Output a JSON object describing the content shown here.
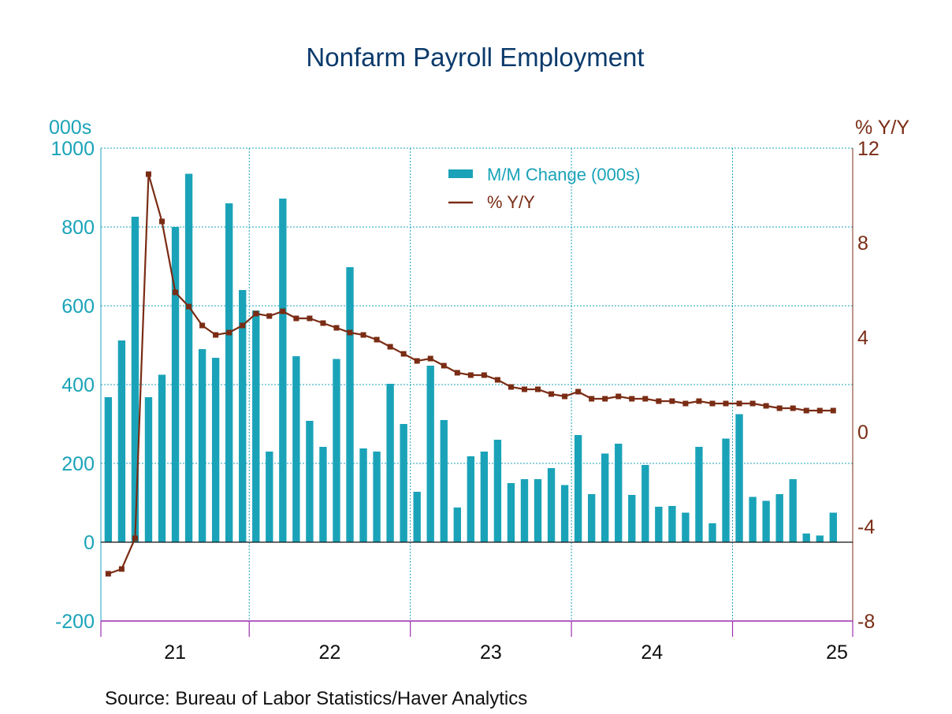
{
  "chart_data": {
    "type": "bar",
    "title": "Nonfarm Payroll Employment",
    "source": "Source:  Bureau of Labor Statistics/Haver Analytics",
    "left_axis": {
      "unit": "000s",
      "range": [
        -200,
        1000
      ],
      "ticks": [
        -200,
        0,
        200,
        400,
        600,
        800,
        1000
      ]
    },
    "right_axis": {
      "unit": "% Y/Y",
      "range": [
        -8,
        12
      ],
      "ticks": [
        -8,
        -4,
        0,
        4,
        8,
        12
      ]
    },
    "x_tick_labels": [
      "21",
      "22",
      "23",
      "24",
      "25"
    ],
    "colors": {
      "bars": "#1aa3b8",
      "line": "#7a2c14",
      "title": "#0b3a6b",
      "grid": "#1aa3b8",
      "axis": "#9b2fae"
    },
    "grid": true,
    "legend_position": "top-center",
    "series": [
      {
        "name": "M/M Change (000s)",
        "type": "bar",
        "axis": "left",
        "values": [
          368,
          512,
          826,
          368,
          425,
          800,
          935,
          490,
          468,
          860,
          640,
          588,
          230,
          872,
          472,
          308,
          242,
          465,
          698,
          238,
          230,
          402,
          300,
          128,
          448,
          310,
          88,
          218,
          230,
          260,
          150,
          160,
          160,
          188,
          145,
          272,
          122,
          225,
          250,
          120,
          196,
          90,
          92,
          75,
          242,
          48,
          263,
          325,
          115,
          105,
          122,
          160,
          22,
          17,
          75
        ]
      },
      {
        "name": "% Y/Y",
        "type": "line",
        "axis": "right",
        "values": [
          -6.0,
          -5.8,
          -4.5,
          10.9,
          8.9,
          5.9,
          5.3,
          4.5,
          4.1,
          4.2,
          4.5,
          5.0,
          4.9,
          5.1,
          4.8,
          4.8,
          4.6,
          4.4,
          4.2,
          4.1,
          3.9,
          3.6,
          3.3,
          3.0,
          3.1,
          2.8,
          2.5,
          2.4,
          2.4,
          2.2,
          1.9,
          1.8,
          1.8,
          1.6,
          1.5,
          1.7,
          1.4,
          1.4,
          1.5,
          1.4,
          1.4,
          1.3,
          1.3,
          1.2,
          1.3,
          1.2,
          1.2,
          1.2,
          1.2,
          1.1,
          1.0,
          1.0,
          0.9,
          0.9,
          0.9
        ]
      }
    ]
  }
}
